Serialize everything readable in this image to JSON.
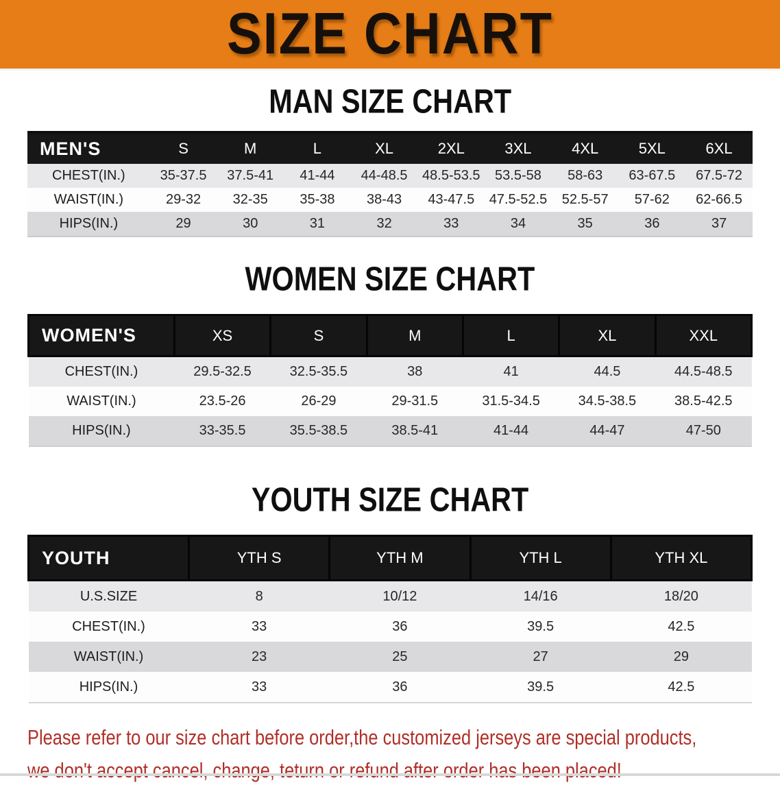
{
  "banner": {
    "title": "SIZE CHART"
  },
  "sections": [
    {
      "heading": "MAN SIZE CHART",
      "table": {
        "group_label": "MEN'S",
        "columns": [
          "S",
          "M",
          "L",
          "XL",
          "2XL",
          "3XL",
          "4XL",
          "5XL",
          "6XL"
        ],
        "rows": [
          {
            "label": "CHEST(IN.)",
            "values": [
              "35-37.5",
              "37.5-41",
              "41-44",
              "44-48.5",
              "48.5-53.5",
              "53.5-58",
              "58-63",
              "63-67.5",
              "67.5-72"
            ]
          },
          {
            "label": "WAIST(IN.)",
            "values": [
              "29-32",
              "32-35",
              "35-38",
              "38-43",
              "43-47.5",
              "47.5-52.5",
              "52.5-57",
              "57-62",
              "62-66.5"
            ]
          },
          {
            "label": "HIPS(IN.)",
            "values": [
              "29",
              "30",
              "31",
              "32",
              "33",
              "34",
              "35",
              "36",
              "37"
            ]
          }
        ]
      }
    },
    {
      "heading": "WOMEN SIZE CHART",
      "table": {
        "group_label": "WOMEN'S",
        "columns": [
          "XS",
          "S",
          "M",
          "L",
          "XL",
          "XXL"
        ],
        "rows": [
          {
            "label": "CHEST(IN.)",
            "values": [
              "29.5-32.5",
              "32.5-35.5",
              "38",
              "41",
              "44.5",
              "44.5-48.5"
            ]
          },
          {
            "label": "WAIST(IN.)",
            "values": [
              "23.5-26",
              "26-29",
              "29-31.5",
              "31.5-34.5",
              "34.5-38.5",
              "38.5-42.5"
            ]
          },
          {
            "label": "HIPS(IN.)",
            "values": [
              "33-35.5",
              "35.5-38.5",
              "38.5-41",
              "41-44",
              "44-47",
              "47-50"
            ]
          }
        ]
      }
    },
    {
      "heading": "YOUTH SIZE CHART",
      "table": {
        "group_label": "YOUTH",
        "columns": [
          "YTH S",
          "YTH M",
          "YTH L",
          "YTH XL"
        ],
        "rows": [
          {
            "label": "U.S.SIZE",
            "values": [
              "8",
              "10/12",
              "14/16",
              "18/20"
            ]
          },
          {
            "label": "CHEST(IN.)",
            "values": [
              "33",
              "36",
              "39.5",
              "42.5"
            ]
          },
          {
            "label": "WAIST(IN.)",
            "values": [
              "23",
              "25",
              "27",
              "29"
            ]
          },
          {
            "label": "HIPS(IN.)",
            "values": [
              "33",
              "36",
              "39.5",
              "42.5"
            ]
          }
        ]
      }
    }
  ],
  "disclaimer": {
    "line1": "Please refer to our size chart before order,the customized jerseys are special products,",
    "line2": "we don't accept cancel, change, teturn or refund after order has been placed!"
  },
  "colors": {
    "banner_bg": "#e67d16",
    "table_header_bg": "#171717",
    "table_header_text": "#ffffff",
    "row_light": "#e8e8ea",
    "row_white": "#fdfdfd",
    "row_gray": "#d9d9db",
    "disclaimer_text": "#b02f28",
    "heading_text": "#0f0f0f"
  }
}
